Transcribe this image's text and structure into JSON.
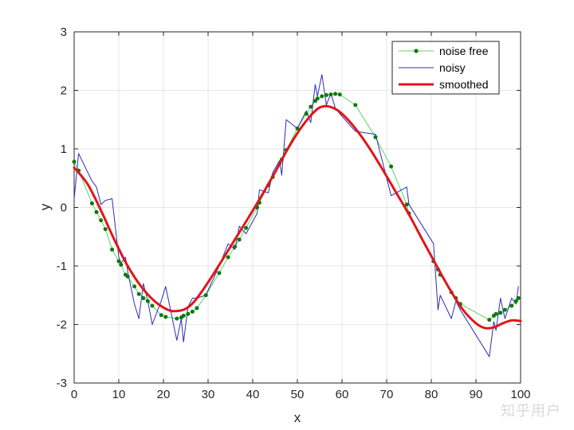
{
  "chart_data": {
    "type": "line",
    "title": "",
    "xlabel": "x",
    "ylabel": "y",
    "xlim": [
      0,
      100
    ],
    "ylim": [
      -3,
      3
    ],
    "xticks": [
      0,
      10,
      20,
      30,
      40,
      50,
      60,
      70,
      80,
      90,
      100
    ],
    "yticks": [
      -3,
      -2,
      -1,
      0,
      1,
      2,
      3
    ],
    "xtick_labels": [
      "0",
      "10",
      "20",
      "30",
      "40",
      "50",
      "60",
      "70",
      "80",
      "90",
      "100"
    ],
    "ytick_labels": [
      "-3",
      "-2",
      "-1",
      "0",
      "1",
      "2",
      "3"
    ],
    "grid": true,
    "legend_position": "top-right",
    "series": [
      {
        "name": "noise free",
        "style": "line-with-markers",
        "color": "#5fd35f",
        "marker_color": "#0a7a0a",
        "x": [
          0,
          1,
          4,
          5,
          6,
          7,
          8.5,
          10,
          10.5,
          11.5,
          12,
          13.5,
          14.5,
          15.5,
          16.5,
          17.5,
          19.5,
          20.5,
          23,
          24,
          24.5,
          25.5,
          26.5,
          27.5,
          29.5,
          32.5,
          34.5,
          36,
          37,
          38.5,
          41,
          41.5,
          43.5,
          44.5,
          46,
          46.5,
          47.5,
          50,
          52,
          53,
          54,
          54.5,
          55.5,
          56.5,
          57.5,
          58.5,
          59.5,
          63,
          67.5,
          71,
          74.5,
          75,
          80.5,
          81.5,
          82,
          84.5,
          85.5,
          86.5,
          93,
          94,
          94.5,
          95.5,
          96.5,
          98,
          99,
          99.5
        ],
        "y": [
          0.78,
          0.63,
          0.07,
          -0.08,
          -0.22,
          -0.37,
          -0.72,
          -0.92,
          -0.98,
          -1.15,
          -1.18,
          -1.35,
          -1.48,
          -1.55,
          -1.6,
          -1.68,
          -1.84,
          -1.87,
          -1.9,
          -1.88,
          -1.85,
          -1.82,
          -1.78,
          -1.72,
          -1.5,
          -1.12,
          -0.85,
          -0.67,
          -0.55,
          -0.35,
          0.0,
          0.08,
          0.38,
          0.52,
          0.75,
          0.82,
          0.98,
          1.35,
          1.6,
          1.72,
          1.82,
          1.86,
          1.9,
          1.92,
          1.93,
          1.94,
          1.93,
          1.75,
          1.2,
          0.7,
          0.05,
          -0.1,
          -0.92,
          -1.06,
          -1.15,
          -1.45,
          -1.55,
          -1.65,
          -1.92,
          -1.85,
          -1.82,
          -1.8,
          -1.75,
          -1.68,
          -1.6,
          -1.55
        ]
      },
      {
        "name": "noisy",
        "style": "line",
        "color": "#2d2db8",
        "x": [
          0,
          1,
          4,
          5,
          6,
          7,
          8.5,
          10,
          10.5,
          11.5,
          12,
          13.5,
          14.5,
          15.5,
          16.5,
          17.5,
          19.5,
          20.5,
          23,
          24,
          24.5,
          25.5,
          26.5,
          27.5,
          29.5,
          32.5,
          34.5,
          36,
          37,
          38.5,
          41,
          41.5,
          43.5,
          44.5,
          46,
          46.5,
          47.5,
          50,
          52,
          53,
          54,
          54.5,
          55.5,
          56.5,
          57.5,
          58.5,
          59.5,
          63,
          67.5,
          71,
          74.5,
          75,
          80.5,
          81.5,
          82,
          84.5,
          85.5,
          86.5,
          93,
          94,
          94.5,
          95.5,
          96.5,
          98,
          99,
          99.5
        ],
        "y": [
          0.15,
          0.92,
          0.45,
          0.35,
          0.05,
          0.12,
          0.15,
          -0.85,
          -0.95,
          -0.85,
          -1.1,
          -1.65,
          -1.9,
          -1.3,
          -1.6,
          -2.0,
          -1.6,
          -1.35,
          -2.27,
          -1.9,
          -2.3,
          -1.7,
          -1.55,
          -1.55,
          -1.5,
          -1.0,
          -0.62,
          -0.72,
          -0.32,
          -0.45,
          -0.1,
          0.3,
          0.25,
          0.6,
          0.8,
          0.55,
          1.5,
          1.35,
          1.65,
          1.45,
          2.1,
          1.9,
          2.27,
          1.75,
          1.95,
          1.7,
          1.6,
          1.3,
          1.25,
          0.2,
          0.35,
          0.05,
          -0.62,
          -1.75,
          -1.5,
          -1.9,
          -1.6,
          -1.75,
          -2.55,
          -1.95,
          -2.1,
          -1.55,
          -1.9,
          -1.55,
          -1.65,
          -1.35
        ]
      },
      {
        "name": "smoothed",
        "style": "line",
        "color": "#e0161b",
        "x": [
          0,
          3,
          6,
          9,
          12,
          15,
          18,
          21,
          23,
          25,
          27,
          30,
          33,
          36,
          39,
          42,
          45,
          48,
          51,
          54,
          56,
          58,
          60,
          63,
          66,
          69,
          72,
          75,
          78,
          81,
          84,
          87,
          90,
          92,
          94,
          96,
          98,
          100
        ],
        "y": [
          0.68,
          0.4,
          -0.05,
          -0.55,
          -1.0,
          -1.35,
          -1.6,
          -1.75,
          -1.77,
          -1.73,
          -1.6,
          -1.28,
          -0.92,
          -0.55,
          -0.18,
          0.2,
          0.6,
          1.02,
          1.38,
          1.65,
          1.73,
          1.7,
          1.6,
          1.35,
          1.03,
          0.66,
          0.27,
          -0.12,
          -0.55,
          -0.97,
          -1.38,
          -1.74,
          -1.98,
          -2.06,
          -2.05,
          -1.98,
          -1.93,
          -1.94
        ]
      }
    ]
  },
  "watermark": "知乎用户"
}
